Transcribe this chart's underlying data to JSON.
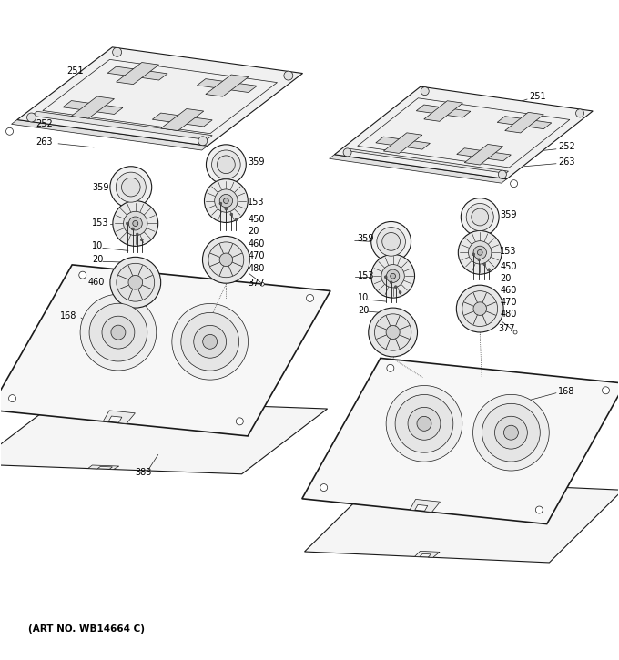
{
  "art_no": "(ART NO. WB14664 C)",
  "bg_color": "#ffffff",
  "line_color": "#1a1a1a",
  "figsize": [
    6.8,
    7.25
  ],
  "dpi": 100
}
